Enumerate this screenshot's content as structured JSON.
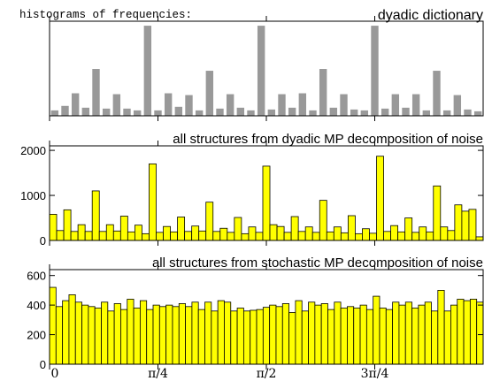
{
  "figure": {
    "heading": "histograms of frequencies:",
    "x_tick_labels": [
      "0",
      "π/4",
      "π/2",
      "3π/4"
    ]
  },
  "chart_data": [
    {
      "type": "bar",
      "title": "dyadic dictionary",
      "xlabel": "",
      "ylabel": "",
      "xlim": [
        0,
        1
      ],
      "ylim": [
        0,
        1.05
      ],
      "y_ticks": [],
      "bar_color": "#999999",
      "bar_outline": false,
      "values": [
        0.06,
        0.11,
        0.25,
        0.09,
        0.52,
        0.08,
        0.24,
        0.08,
        0.06,
        1.0,
        0.06,
        0.25,
        0.1,
        0.23,
        0.06,
        0.5,
        0.08,
        0.24,
        0.09,
        0.06,
        1.0,
        0.07,
        0.24,
        0.09,
        0.25,
        0.06,
        0.52,
        0.09,
        0.24,
        0.07,
        0.06,
        1.0,
        0.08,
        0.24,
        0.09,
        0.24,
        0.06,
        0.5,
        0.06,
        0.23,
        0.07,
        0.05
      ]
    },
    {
      "type": "bar",
      "title": "all structures from dyadic MP decomposition of noise",
      "xlabel": "",
      "ylabel": "",
      "xlim": [
        0,
        1
      ],
      "ylim": [
        0,
        2100
      ],
      "y_ticks": [
        0,
        1000,
        2000
      ],
      "bar_color": "#ffff00",
      "bar_outline": true,
      "values": [
        580,
        220,
        680,
        200,
        350,
        200,
        1100,
        200,
        350,
        210,
        540,
        190,
        340,
        150,
        1700,
        180,
        310,
        190,
        520,
        200,
        320,
        210,
        850,
        200,
        270,
        180,
        510,
        150,
        300,
        180,
        1650,
        350,
        310,
        180,
        530,
        200,
        300,
        180,
        890,
        190,
        300,
        170,
        550,
        150,
        260,
        160,
        1870,
        200,
        330,
        190,
        500,
        180,
        300,
        190,
        1210,
        300,
        220,
        790,
        650,
        690,
        80
      ]
    },
    {
      "type": "bar",
      "title": "all structures from stochastic MP decomposition of noise",
      "xlabel": "",
      "ylabel": "",
      "xlim": [
        0,
        1
      ],
      "ylim": [
        0,
        640
      ],
      "y_ticks": [
        0,
        200,
        400,
        600
      ],
      "bar_color": "#ffff00",
      "bar_outline": true,
      "values": [
        520,
        390,
        430,
        470,
        420,
        400,
        390,
        380,
        420,
        360,
        410,
        370,
        440,
        380,
        430,
        370,
        400,
        390,
        400,
        390,
        410,
        390,
        420,
        370,
        420,
        360,
        430,
        420,
        360,
        380,
        360,
        365,
        370,
        385,
        400,
        390,
        410,
        350,
        430,
        360,
        420,
        400,
        410,
        370,
        420,
        380,
        390,
        380,
        400,
        370,
        460,
        380,
        370,
        420,
        400,
        420,
        380,
        400,
        420,
        360,
        500,
        360,
        400,
        440,
        430,
        440,
        420
      ]
    }
  ]
}
